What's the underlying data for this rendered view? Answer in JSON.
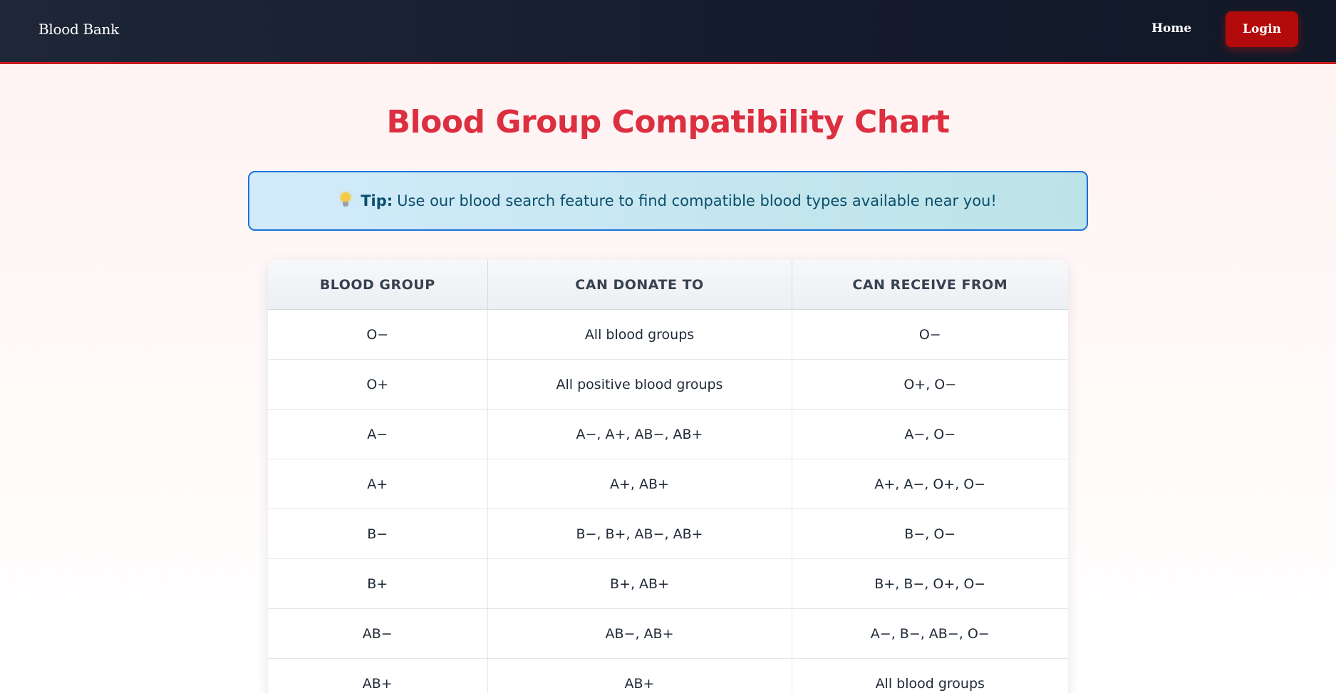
{
  "navbar": {
    "brand": "Blood Bank",
    "home_label": "Home",
    "login_label": "Login"
  },
  "page": {
    "title": "Blood Group Compatibility Chart"
  },
  "tip": {
    "icon": "lightbulb-icon",
    "label": "Tip:",
    "text": "Use our blood search feature to find compatible blood types available near you!"
  },
  "table": {
    "headers": [
      "BLOOD GROUP",
      "CAN DONATE TO",
      "CAN RECEIVE FROM"
    ],
    "rows": [
      [
        "O−",
        "All blood groups",
        "O−"
      ],
      [
        "O+",
        "All positive blood groups",
        "O+, O−"
      ],
      [
        "A−",
        "A−, A+, AB−, AB+",
        "A−, O−"
      ],
      [
        "A+",
        "A+, AB+",
        "A+, A−, O+, O−"
      ],
      [
        "B−",
        "B−, B+, AB−, AB+",
        "B−, O−"
      ],
      [
        "B+",
        "B+, AB+",
        "B+, B−, O+, O−"
      ],
      [
        "AB−",
        "AB−, AB+",
        "A−, B−, AB−, O−"
      ],
      [
        "AB+",
        "AB+",
        "All blood groups"
      ]
    ]
  },
  "colors": {
    "accent": "#dc2f3f",
    "login_button": "#b30b0b",
    "navbar": "#1a2233",
    "tip_border": "#1e6fd9",
    "tip_text": "#0b4f6c"
  }
}
